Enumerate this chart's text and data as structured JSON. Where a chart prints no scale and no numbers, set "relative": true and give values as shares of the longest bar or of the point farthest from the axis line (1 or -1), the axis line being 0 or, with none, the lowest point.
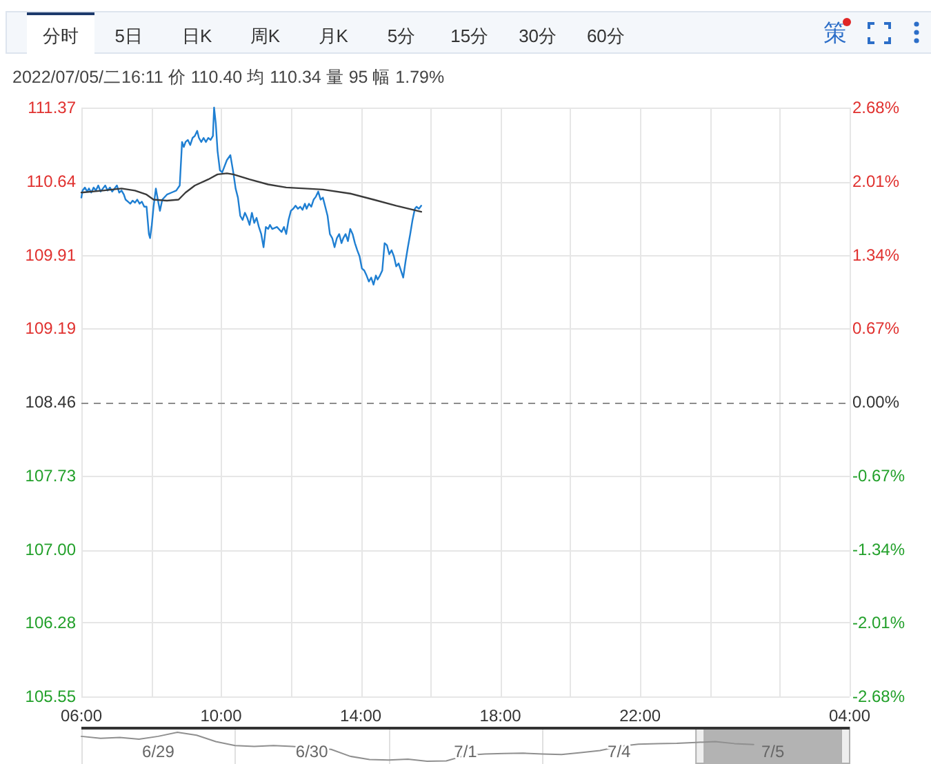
{
  "chart_data": [
    {
      "type": "line",
      "subtitle": "2022/07/05/二16:11  价 110.40  均 110.34  量 95  幅 1.79%",
      "annotations": [
        "分时",
        "5日",
        "日K",
        "周K",
        "月K",
        "5分",
        "15分",
        "30分",
        "60分",
        "策"
      ],
      "series": [
        {
          "color": "#1f7fd2",
          "x": [
            "2022-07-05T06:00",
            "2022-07-05T06:02",
            "2022-07-05T06:06",
            "2022-07-05T06:10",
            "2022-07-05T06:13",
            "2022-07-05T06:17",
            "2022-07-05T06:21",
            "2022-07-05T06:25",
            "2022-07-05T06:29",
            "2022-07-05T06:33",
            "2022-07-05T06:37",
            "2022-07-05T06:41",
            "2022-07-05T06:45",
            "2022-07-05T06:49",
            "2022-07-05T06:53",
            "2022-07-05T06:57",
            "2022-07-05T07:01",
            "2022-07-05T07:05",
            "2022-07-05T07:09",
            "2022-07-05T07:13",
            "2022-07-05T07:16",
            "2022-07-05T07:20",
            "2022-07-05T07:24",
            "2022-07-05T07:28",
            "2022-07-05T07:32",
            "2022-07-05T07:36",
            "2022-07-05T07:40",
            "2022-07-05T07:44",
            "2022-07-05T07:48",
            "2022-07-05T07:52",
            "2022-07-05T07:56",
            "2022-07-05T07:58",
            "2022-07-05T08:01",
            "2022-07-05T08:04",
            "2022-07-05T08:08",
            "2022-07-05T08:12",
            "2022-07-05T08:15",
            "2022-07-05T08:19",
            "2022-07-05T08:27",
            "2022-07-05T08:35",
            "2022-07-05T08:43",
            "2022-07-05T08:49",
            "2022-07-05T08:53",
            "2022-07-05T08:56",
            "2022-07-05T08:59",
            "2022-07-05T09:03",
            "2022-07-05T09:07",
            "2022-07-05T09:11",
            "2022-07-05T09:15",
            "2022-07-05T09:19",
            "2022-07-05T09:22",
            "2022-07-05T09:26",
            "2022-07-05T09:30",
            "2022-07-05T09:34",
            "2022-07-05T09:38",
            "2022-07-05T09:42",
            "2022-07-05T09:46",
            "2022-07-05T09:48",
            "2022-07-05T09:51",
            "2022-07-05T09:54",
            "2022-07-05T09:58",
            "2022-07-05T10:02",
            "2022-07-05T10:10",
            "2022-07-05T10:16",
            "2022-07-05T10:21",
            "2022-07-05T10:25",
            "2022-07-05T10:29",
            "2022-07-05T10:33",
            "2022-07-05T10:37",
            "2022-07-05T10:41",
            "2022-07-05T10:45",
            "2022-07-05T10:49",
            "2022-07-05T10:53",
            "2022-07-05T10:57",
            "2022-07-05T11:01",
            "2022-07-05T11:05",
            "2022-07-05T11:09",
            "2022-07-05T11:13",
            "2022-07-05T11:17",
            "2022-07-05T11:21",
            "2022-07-05T11:24",
            "2022-07-05T11:28",
            "2022-07-05T11:36",
            "2022-07-05T11:44",
            "2022-07-05T11:48",
            "2022-07-05T11:52",
            "2022-07-05T11:56",
            "2022-07-05T12:00",
            "2022-07-05T12:04",
            "2022-07-05T12:08",
            "2022-07-05T12:12",
            "2022-07-05T12:16",
            "2022-07-05T12:20",
            "2022-07-05T12:24",
            "2022-07-05T12:27",
            "2022-07-05T12:31",
            "2022-07-05T12:35",
            "2022-07-05T12:39",
            "2022-07-05T12:43",
            "2022-07-05T12:47",
            "2022-07-05T12:51",
            "2022-07-05T12:55",
            "2022-07-05T12:59",
            "2022-07-05T13:03",
            "2022-07-05T13:07",
            "2022-07-05T13:11",
            "2022-07-05T13:15",
            "2022-07-05T13:19",
            "2022-07-05T13:23",
            "2022-07-05T13:27",
            "2022-07-05T13:30",
            "2022-07-05T13:34",
            "2022-07-05T13:38",
            "2022-07-05T13:42",
            "2022-07-05T13:46",
            "2022-07-05T13:50",
            "2022-07-05T13:54",
            "2022-07-05T13:58",
            "2022-07-05T14:02",
            "2022-07-05T14:06",
            "2022-07-05T14:10",
            "2022-07-05T14:14",
            "2022-07-05T14:18",
            "2022-07-05T14:22",
            "2022-07-05T14:26",
            "2022-07-05T14:29",
            "2022-07-05T14:33",
            "2022-07-05T14:37",
            "2022-07-05T14:41",
            "2022-07-05T14:45",
            "2022-07-05T14:49",
            "2022-07-05T14:53",
            "2022-07-05T14:57",
            "2022-07-05T15:01",
            "2022-07-05T15:05",
            "2022-07-05T15:09",
            "2022-07-05T15:13",
            "2022-07-05T15:17",
            "2022-07-05T15:21",
            "2022-07-05T15:25",
            "2022-07-05T15:29",
            "2022-07-05T15:33",
            "2022-07-05T15:36",
            "2022-07-05T15:40",
            "2022-07-05T15:44"
          ],
          "values": [
            110.48,
            110.55,
            110.58,
            110.54,
            110.57,
            110.53,
            110.58,
            110.55,
            110.6,
            110.54,
            110.57,
            110.6,
            110.55,
            110.58,
            110.54,
            110.57,
            110.6,
            110.53,
            110.55,
            110.51,
            110.46,
            110.44,
            110.42,
            110.45,
            110.43,
            110.46,
            110.42,
            110.44,
            110.39,
            110.39,
            110.12,
            110.08,
            110.21,
            110.39,
            110.57,
            110.44,
            110.35,
            110.46,
            110.51,
            110.53,
            110.55,
            110.6,
            111.03,
            110.98,
            111.03,
            111.05,
            111.0,
            111.07,
            111.09,
            111.14,
            111.07,
            111.03,
            111.07,
            111.03,
            111.07,
            111.05,
            111.09,
            111.37,
            111.21,
            110.94,
            110.75,
            110.73,
            110.85,
            110.9,
            110.73,
            110.57,
            110.48,
            110.3,
            110.26,
            110.33,
            110.28,
            110.21,
            110.33,
            110.23,
            110.28,
            110.19,
            110.12,
            109.99,
            110.19,
            110.17,
            110.21,
            110.17,
            110.19,
            110.14,
            110.19,
            110.12,
            110.26,
            110.35,
            110.37,
            110.4,
            110.37,
            110.39,
            110.36,
            110.42,
            110.37,
            110.42,
            110.39,
            110.46,
            110.49,
            110.54,
            110.46,
            110.48,
            110.39,
            110.3,
            110.12,
            110.08,
            109.99,
            110.08,
            110.12,
            110.03,
            110.08,
            110.12,
            110.05,
            110.17,
            110.12,
            110.03,
            109.96,
            109.9,
            109.78,
            109.76,
            109.71,
            109.65,
            109.69,
            109.62,
            109.71,
            109.67,
            109.71,
            109.76,
            110.03,
            110.01,
            109.92,
            109.96,
            109.9,
            109.8,
            109.83,
            109.76,
            109.69,
            109.85,
            109.99,
            110.12,
            110.26,
            110.37,
            110.39,
            110.37,
            110.4
          ]
        },
        {
          "color": "#3a3a3a",
          "x": [
            "2022-07-05T06:00",
            "2022-07-05T06:37",
            "2022-07-05T07:09",
            "2022-07-05T07:32",
            "2022-07-05T07:52",
            "2022-07-05T08:04",
            "2022-07-05T08:27",
            "2022-07-05T08:47",
            "2022-07-05T08:59",
            "2022-07-05T09:15",
            "2022-07-05T09:38",
            "2022-07-05T09:54",
            "2022-07-05T10:10",
            "2022-07-05T10:21",
            "2022-07-05T10:49",
            "2022-07-05T11:21",
            "2022-07-05T11:52",
            "2022-07-05T12:24",
            "2022-07-05T12:55",
            "2022-07-05T13:42",
            "2022-07-05T14:22",
            "2022-07-05T15:01",
            "2022-07-05T15:44"
          ],
          "values": [
            110.53,
            110.55,
            110.57,
            110.55,
            110.51,
            110.46,
            110.45,
            110.46,
            110.53,
            110.6,
            110.66,
            110.71,
            110.72,
            110.71,
            110.66,
            110.61,
            110.58,
            110.57,
            110.56,
            110.52,
            110.46,
            110.4,
            110.34
          ]
        }
      ],
      "xlim": [
        "2022-07-05T06:00",
        "2022-07-06T04:00"
      ],
      "xticks": [
        {
          "value": "2022-07-05T06:00",
          "label": "06:00"
        },
        {
          "value": "2022-07-05T08:00",
          "label": null
        },
        {
          "value": "2022-07-05T10:00",
          "label": "10:00"
        },
        {
          "value": "2022-07-05T12:00",
          "label": null
        },
        {
          "value": "2022-07-05T14:00",
          "label": "14:00"
        },
        {
          "value": "2022-07-05T16:00",
          "label": null
        },
        {
          "value": "2022-07-05T18:00",
          "label": "18:00"
        },
        {
          "value": "2022-07-05T20:00",
          "label": null
        },
        {
          "value": "2022-07-05T22:00",
          "label": "22:00"
        },
        {
          "value": "2022-07-06T00:00",
          "label": null
        },
        {
          "value": "2022-07-06T02:00",
          "label": null
        },
        {
          "value": "2022-07-06T04:00",
          "label": "04:00"
        }
      ],
      "ylim": [
        105.55,
        111.37
      ],
      "yticks": [
        105.55,
        106.28,
        {
          "value": 107,
          "label": "107.00"
        },
        107.73,
        108.46,
        109.19,
        109.91,
        110.64,
        111.37
      ],
      "y2lim": [
        -2.68,
        2.68
      ],
      "y2ticks": [
        {
          "value": -2.68,
          "label": "-2.68%"
        },
        {
          "value": -2.01,
          "label": "-2.01%"
        },
        {
          "value": -1.34,
          "label": "-1.34%"
        },
        {
          "value": -0.67,
          "label": "-0.67%"
        },
        {
          "value": 0,
          "label": "0.00%"
        },
        {
          "value": 0.67,
          "label": "0.67%"
        },
        {
          "value": 1.34,
          "label": "1.34%"
        },
        {
          "value": 2.01,
          "label": "2.01%"
        },
        {
          "value": 2.68,
          "label": "2.68%"
        }
      ],
      "ref_lines": [
        {
          "axis": "y",
          "value": 108.46,
          "line_style": "dashed",
          "color": "#8c8c8c"
        }
      ],
      "grid": true
    },
    {
      "type": "line",
      "relative": true,
      "color": "#8f8f8f",
      "grid": "x",
      "categories": [
        null,
        null,
        null,
        null,
        "6/29",
        null,
        null,
        null,
        null,
        null,
        null,
        null,
        "6/30",
        null,
        null,
        null,
        null,
        null,
        null,
        null,
        "7/1",
        null,
        null,
        null,
        null,
        null,
        null,
        null,
        "7/4",
        null,
        null,
        null,
        null,
        null,
        null,
        null,
        "7/5",
        null,
        null,
        null,
        null
      ],
      "values": [
        0.86,
        0.79,
        0.82,
        0.76,
        0.86,
        1.0,
        0.9,
        0.68,
        0.54,
        0.51,
        0.54,
        0.51,
        0.45,
        0.41,
        0.17,
        0.06,
        0.04,
        0.07,
        0.0,
        0.01,
        0.2,
        0.25,
        0.27,
        0.28,
        0.25,
        0.23,
        0.3,
        0.37,
        0.51,
        0.59,
        0.61,
        0.62,
        0.65,
        0.68,
        0.61,
        0.58,
        null,
        null,
        null,
        null,
        null
      ]
    }
  ]
}
